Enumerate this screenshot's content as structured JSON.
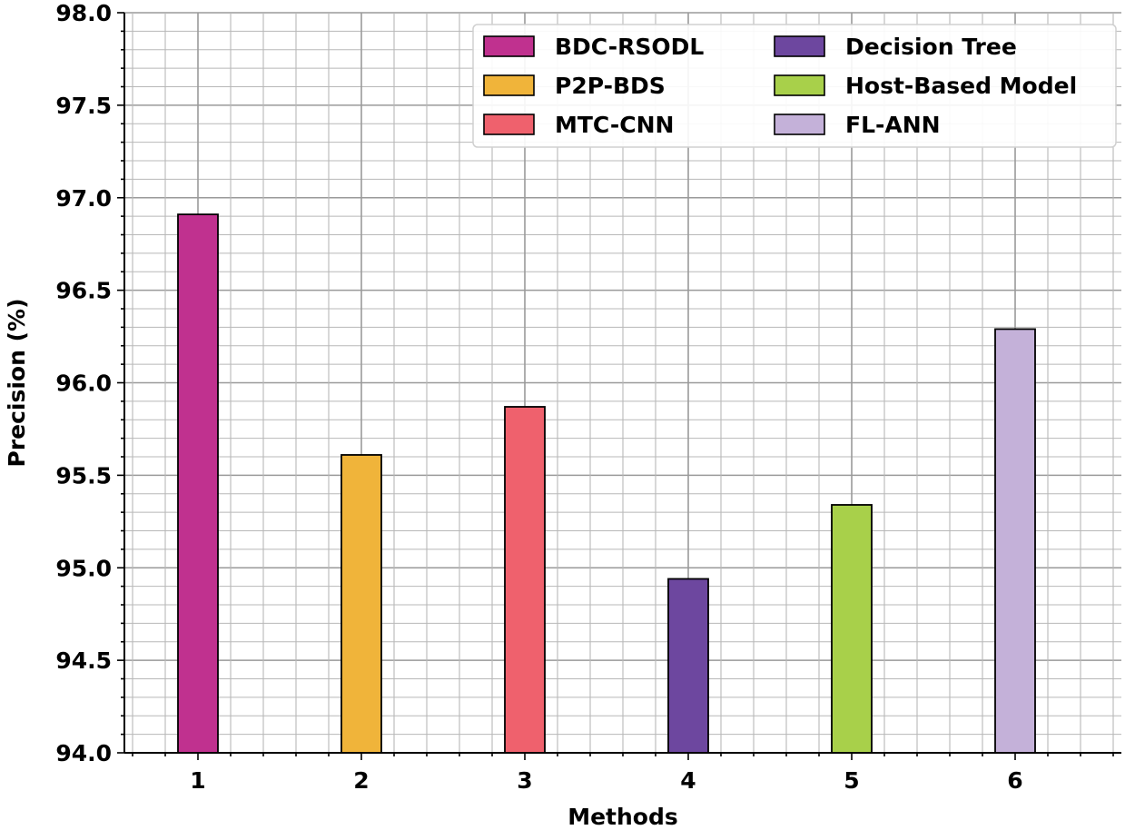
{
  "chart_data": {
    "type": "bar",
    "categories": [
      "1",
      "2",
      "3",
      "4",
      "5",
      "6"
    ],
    "series": [
      {
        "name": "BDC-RSODL",
        "values": [
          96.91,
          null,
          null,
          null,
          null,
          null
        ],
        "color": "#c0318f"
      },
      {
        "name": "P2P-BDS",
        "values": [
          null,
          95.61,
          null,
          null,
          null,
          null
        ],
        "color": "#f0b43a"
      },
      {
        "name": "MTC-CNN",
        "values": [
          null,
          null,
          95.87,
          null,
          null,
          null
        ],
        "color": "#ef616d"
      },
      {
        "name": "Decision Tree",
        "values": [
          null,
          null,
          null,
          94.94,
          null,
          null
        ],
        "color": "#6d479f"
      },
      {
        "name": "Host-Based Model",
        "values": [
          null,
          null,
          null,
          null,
          95.34,
          null
        ],
        "color": "#a8d04a"
      },
      {
        "name": "FL-ANN",
        "values": [
          null,
          null,
          null,
          null,
          null,
          96.29
        ],
        "color": "#c4b1d9"
      }
    ],
    "title": "",
    "xlabel": "Methods",
    "ylabel": "Precision (%)",
    "ylim": [
      94.0,
      98.0
    ],
    "yticks": [
      "94.0",
      "94.5",
      "95.0",
      "95.5",
      "96.0",
      "96.5",
      "97.0",
      "97.5",
      "98.0"
    ],
    "grid": true,
    "legend_position": "top-right"
  }
}
